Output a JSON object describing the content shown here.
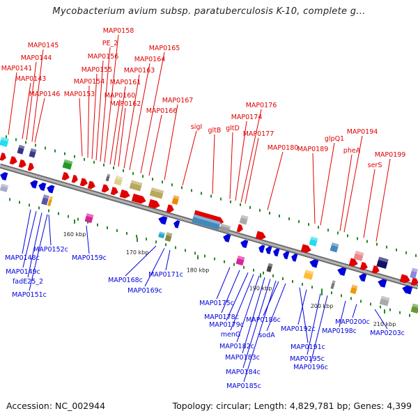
{
  "title": "Mycobacterium avium subsp. paratuberculosis K-10, complete g...",
  "footer": {
    "accession": "Accession: NC_002944",
    "topology": "Topology: circular; Length: 4,829,781 bp; Genes: 4,399"
  },
  "colors": {
    "forward": "#e00000",
    "reverse": "#0000dd",
    "backbone": "#8c8c8c"
  },
  "ticks": [
    {
      "label": "160 kbp"
    },
    {
      "label": "170 kbp"
    },
    {
      "label": "180 kbp"
    },
    {
      "label": "190 kbp"
    },
    {
      "label": "200 kbp"
    },
    {
      "label": "210 kbp"
    }
  ],
  "forward_labels": [
    "MAP0141",
    "MAP0143",
    "MAP0144",
    "MAP0145",
    "MAP0146",
    "MAP0153",
    "MAP0154",
    "MAP0155",
    "MAP0156",
    "PE_2",
    "MAP0158",
    "MAP0160",
    "MAP0161",
    "MAP0162",
    "MAP0163",
    "MAP0164",
    "MAP0165",
    "MAP0166",
    "MAP0167",
    "sigI",
    "gltB",
    "gltD",
    "MAP0174",
    "MAP0176",
    "MAP0177",
    "MAP0180",
    "MAP0189",
    "glpQ1",
    "pheA",
    "MAP0194",
    "serS",
    "MAP0199"
  ],
  "reverse_labels": [
    "MAP0148c",
    "MAP0149c",
    "fadE25_2",
    "MAP0151c",
    "MAP0152c",
    "MAP0159c",
    "MAP0168c",
    "MAP0169c",
    "MAP0171c",
    "MAP0175c",
    "MAP0178c",
    "MAP0179c",
    "menG",
    "MAP0182c",
    "MAP0183c",
    "MAP0184c",
    "MAP0185c",
    "MAP0186c",
    "sodA",
    "MAP0191c",
    "MAP0192c",
    "MAP0195c",
    "MAP0196c",
    "MAP0198c",
    "MAP0200c",
    "MAP0203c"
  ]
}
